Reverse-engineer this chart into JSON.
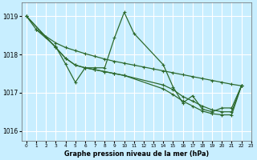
{
  "background_color": "#c8eeff",
  "grid_color": "#ffffff",
  "line_color": "#2d6a2d",
  "xlabel": "Graphe pression niveau de la mer (hPa)",
  "ylim": [
    1015.75,
    1019.35
  ],
  "xlim": [
    -0.5,
    23
  ],
  "yticks": [
    1016,
    1017,
    1018,
    1019
  ],
  "xticks": [
    0,
    1,
    2,
    3,
    4,
    5,
    6,
    7,
    8,
    9,
    10,
    11,
    12,
    13,
    14,
    15,
    16,
    17,
    18,
    19,
    20,
    21,
    22,
    23
  ],
  "s1_x": [
    0,
    1,
    2,
    3,
    4,
    5,
    6,
    7,
    8,
    9,
    10,
    11,
    12,
    13,
    14,
    15,
    16,
    17,
    18,
    19,
    20,
    21,
    22
  ],
  "s1_y": [
    1019.0,
    1018.65,
    1018.47,
    1018.3,
    1018.18,
    1018.1,
    1018.02,
    1017.95,
    1017.88,
    1017.82,
    1017.77,
    1017.72,
    1017.67,
    1017.62,
    1017.57,
    1017.52,
    1017.47,
    1017.42,
    1017.37,
    1017.32,
    1017.27,
    1017.22,
    1017.18
  ],
  "s2_x": [
    0,
    3,
    4,
    5,
    6,
    7,
    8,
    9,
    10,
    14,
    15,
    16,
    17,
    18,
    19,
    20,
    21,
    22
  ],
  "s2_y": [
    1019.0,
    1018.18,
    1017.9,
    1017.72,
    1017.65,
    1017.6,
    1017.55,
    1017.5,
    1017.45,
    1017.2,
    1017.08,
    1016.9,
    1016.78,
    1016.65,
    1016.55,
    1016.5,
    1016.5,
    1017.18
  ],
  "s3_x": [
    0,
    3,
    4,
    5,
    6,
    7,
    8,
    9,
    10,
    14,
    15,
    16,
    17,
    18,
    19,
    20,
    21,
    22
  ],
  "s3_y": [
    1019.0,
    1018.18,
    1017.9,
    1017.72,
    1017.65,
    1017.6,
    1017.55,
    1017.5,
    1017.45,
    1017.1,
    1016.95,
    1016.78,
    1016.65,
    1016.52,
    1016.45,
    1016.42,
    1016.42,
    1017.18
  ],
  "s4_x": [
    1,
    3,
    4,
    5,
    6,
    7,
    8,
    9,
    10,
    11,
    14,
    15,
    16,
    17,
    18,
    19,
    20,
    21,
    22
  ],
  "s4_y": [
    1018.65,
    1018.2,
    1017.75,
    1017.27,
    1017.65,
    1017.65,
    1017.65,
    1018.43,
    1019.1,
    1018.55,
    1017.73,
    1017.15,
    1016.73,
    1016.92,
    1016.57,
    1016.5,
    1016.6,
    1016.6,
    1017.18
  ]
}
